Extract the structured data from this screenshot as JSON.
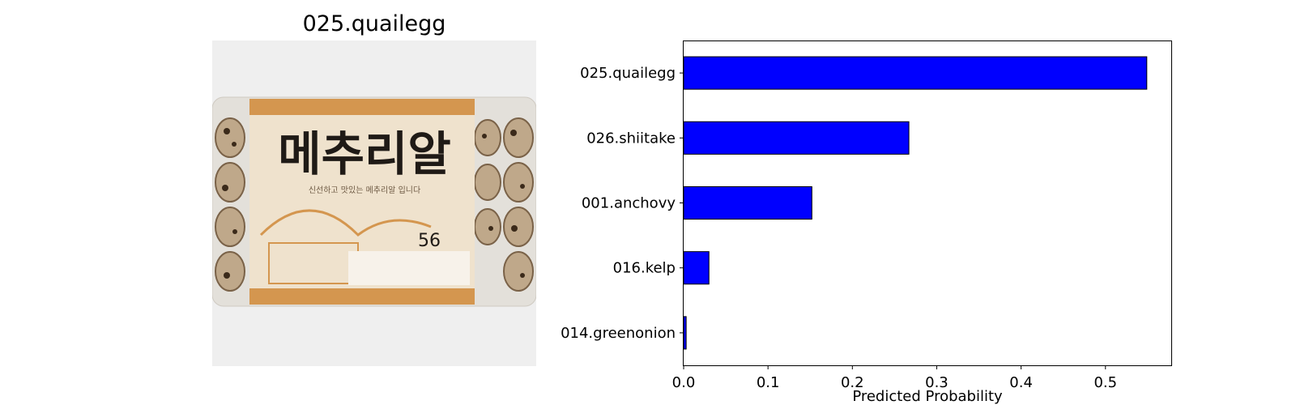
{
  "image_panel": {
    "title": "025.quailegg",
    "photo_text": {
      "brand": "메추리알",
      "subtitle": "신선하고 맛있는 메추리알 입니다",
      "count": "56"
    }
  },
  "colors": {
    "bar_fill": "#0000ff",
    "bar_edge": "#000000",
    "photo_bg": "#efefef",
    "label_orange": "#d4964f"
  },
  "chart_data": {
    "type": "bar",
    "orientation": "horizontal",
    "categories": [
      "025.quailegg",
      "026.shiitake",
      "001.anchovy",
      "016.kelp",
      "014.greenonion"
    ],
    "values": [
      0.549,
      0.267,
      0.152,
      0.03,
      0.003
    ],
    "xlabel": "Predicted Probability",
    "ylabel": "",
    "xlim": [
      0.0,
      0.578
    ],
    "xticks": [
      "0.0",
      "0.1",
      "0.2",
      "0.3",
      "0.4",
      "0.5"
    ],
    "grid": false
  }
}
